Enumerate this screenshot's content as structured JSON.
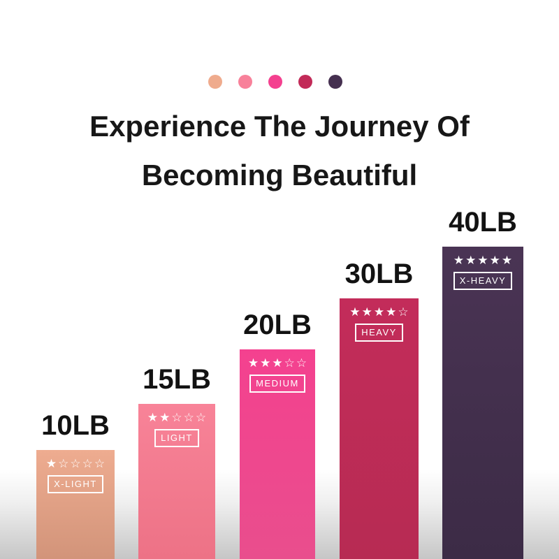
{
  "header": {
    "palette_dots": [
      {
        "name": "x-light",
        "color": "#efab8d"
      },
      {
        "name": "light",
        "color": "#f8819a"
      },
      {
        "name": "medium",
        "color": "#f4408f"
      },
      {
        "name": "heavy",
        "color": "#c22a58"
      },
      {
        "name": "x-heavy",
        "color": "#453050"
      }
    ],
    "title_line1": "Experience The Journey Of",
    "title_line2": "Becoming Beautiful"
  },
  "chart_data": {
    "type": "bar",
    "title": "Experience The Journey Of Becoming Beautiful",
    "categories": [
      "10LB",
      "15LB",
      "20LB",
      "30LB",
      "40LB"
    ],
    "values": [
      10,
      15,
      20,
      30,
      40
    ],
    "unit": "LB",
    "series": [
      {
        "name": "weight_lb",
        "values": [
          10,
          15,
          20,
          30,
          40
        ]
      },
      {
        "name": "star_rating_out_of_5",
        "values": [
          1,
          2,
          3,
          4,
          5
        ]
      },
      {
        "name": "resistance_level",
        "values": [
          "X-LIGHT",
          "LIGHT",
          "MEDIUM",
          "HEAVY",
          "X-HEAVY"
        ]
      }
    ],
    "bar_colors": [
      "#e09e83",
      "#f27b8e",
      "#ef468e",
      "#bd2c57",
      "#43304d"
    ],
    "xlabel": "",
    "ylabel": "",
    "grid": false,
    "legend_position": "none"
  },
  "bars": [
    {
      "weight_label": "10LB",
      "stars_display": "★☆☆☆☆",
      "rating": 1,
      "level_label": "X-LIGHT",
      "color_top": "#eeac90",
      "color_bottom": "#d2947a"
    },
    {
      "weight_label": "15LB",
      "stars_display": "★★☆☆☆",
      "rating": 2,
      "level_label": "LIGHT",
      "color_top": "#f88398",
      "color_bottom": "#ed7286"
    },
    {
      "weight_label": "20LB",
      "stars_display": "★★★☆☆",
      "rating": 3,
      "level_label": "MEDIUM",
      "color_top": "#f4418f",
      "color_bottom": "#e94e8d"
    },
    {
      "weight_label": "30LB",
      "stars_display": "★★★★☆",
      "rating": 4,
      "level_label": "HEAVY",
      "color_top": "#c32c5a",
      "color_bottom": "#b72b53"
    },
    {
      "weight_label": "40LB",
      "stars_display": "★★★★★",
      "rating": 5,
      "level_label": "X-HEAVY",
      "color_top": "#4a3454",
      "color_bottom": "#3c2b46"
    }
  ]
}
